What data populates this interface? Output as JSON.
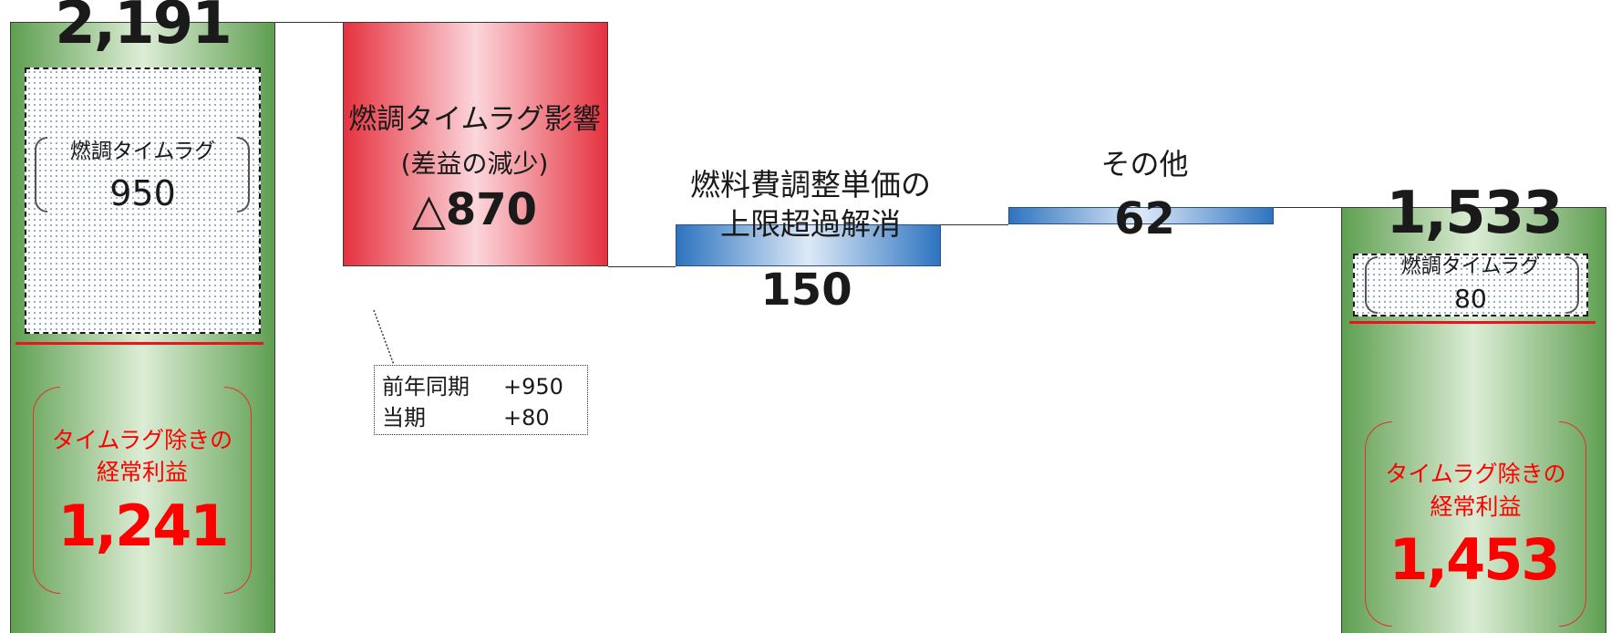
{
  "chart_data": {
    "type": "bar",
    "waterfall": true,
    "highlight_color": "#ff0000",
    "bars": [
      {
        "id": "start",
        "kind": "total",
        "value": 2191,
        "value_label": "2,191",
        "color": "#5f9f52",
        "color_light": "#dcedd5",
        "breakdown": {
          "timelag": {
            "label": "燃調タイムラグ",
            "value": 950,
            "value_label": "950"
          },
          "excluding": {
            "label": [
              "タイムラグ除きの",
              "経常利益"
            ],
            "value": 1241,
            "value_label": "1,241"
          }
        }
      },
      {
        "id": "timelag_impact",
        "kind": "delta",
        "value": -870,
        "label": [
          "燃調タイムラグ影響",
          "(差益の減少)"
        ],
        "value_label": "△870",
        "color": "#e5323f",
        "color_light": "#fbd6db"
      },
      {
        "id": "cap_release",
        "kind": "delta",
        "value": 150,
        "label": [
          "燃料費調整単価の",
          "上限超過解消"
        ],
        "value_label": "150",
        "color": "#2e74c0",
        "color_light": "#dde9f7"
      },
      {
        "id": "other",
        "kind": "delta",
        "value": 62,
        "label": [
          "その他"
        ],
        "value_label": "62",
        "color": "#2e74c0",
        "color_light": "#dde9f7"
      },
      {
        "id": "end",
        "kind": "total",
        "value": 1533,
        "value_label": "1,533",
        "color": "#5f9f52",
        "color_light": "#dcedd5",
        "breakdown": {
          "timelag": {
            "label": "燃調タイムラグ",
            "value": 80,
            "value_label": "80"
          },
          "excluding": {
            "label": [
              "タイムラグ除きの",
              "経常利益"
            ],
            "value": 1453,
            "value_label": "1,453"
          }
        }
      }
    ]
  },
  "note": {
    "rows": [
      {
        "label": "前年同期",
        "value": "+950"
      },
      {
        "label": "当期",
        "value": "+80"
      }
    ]
  }
}
